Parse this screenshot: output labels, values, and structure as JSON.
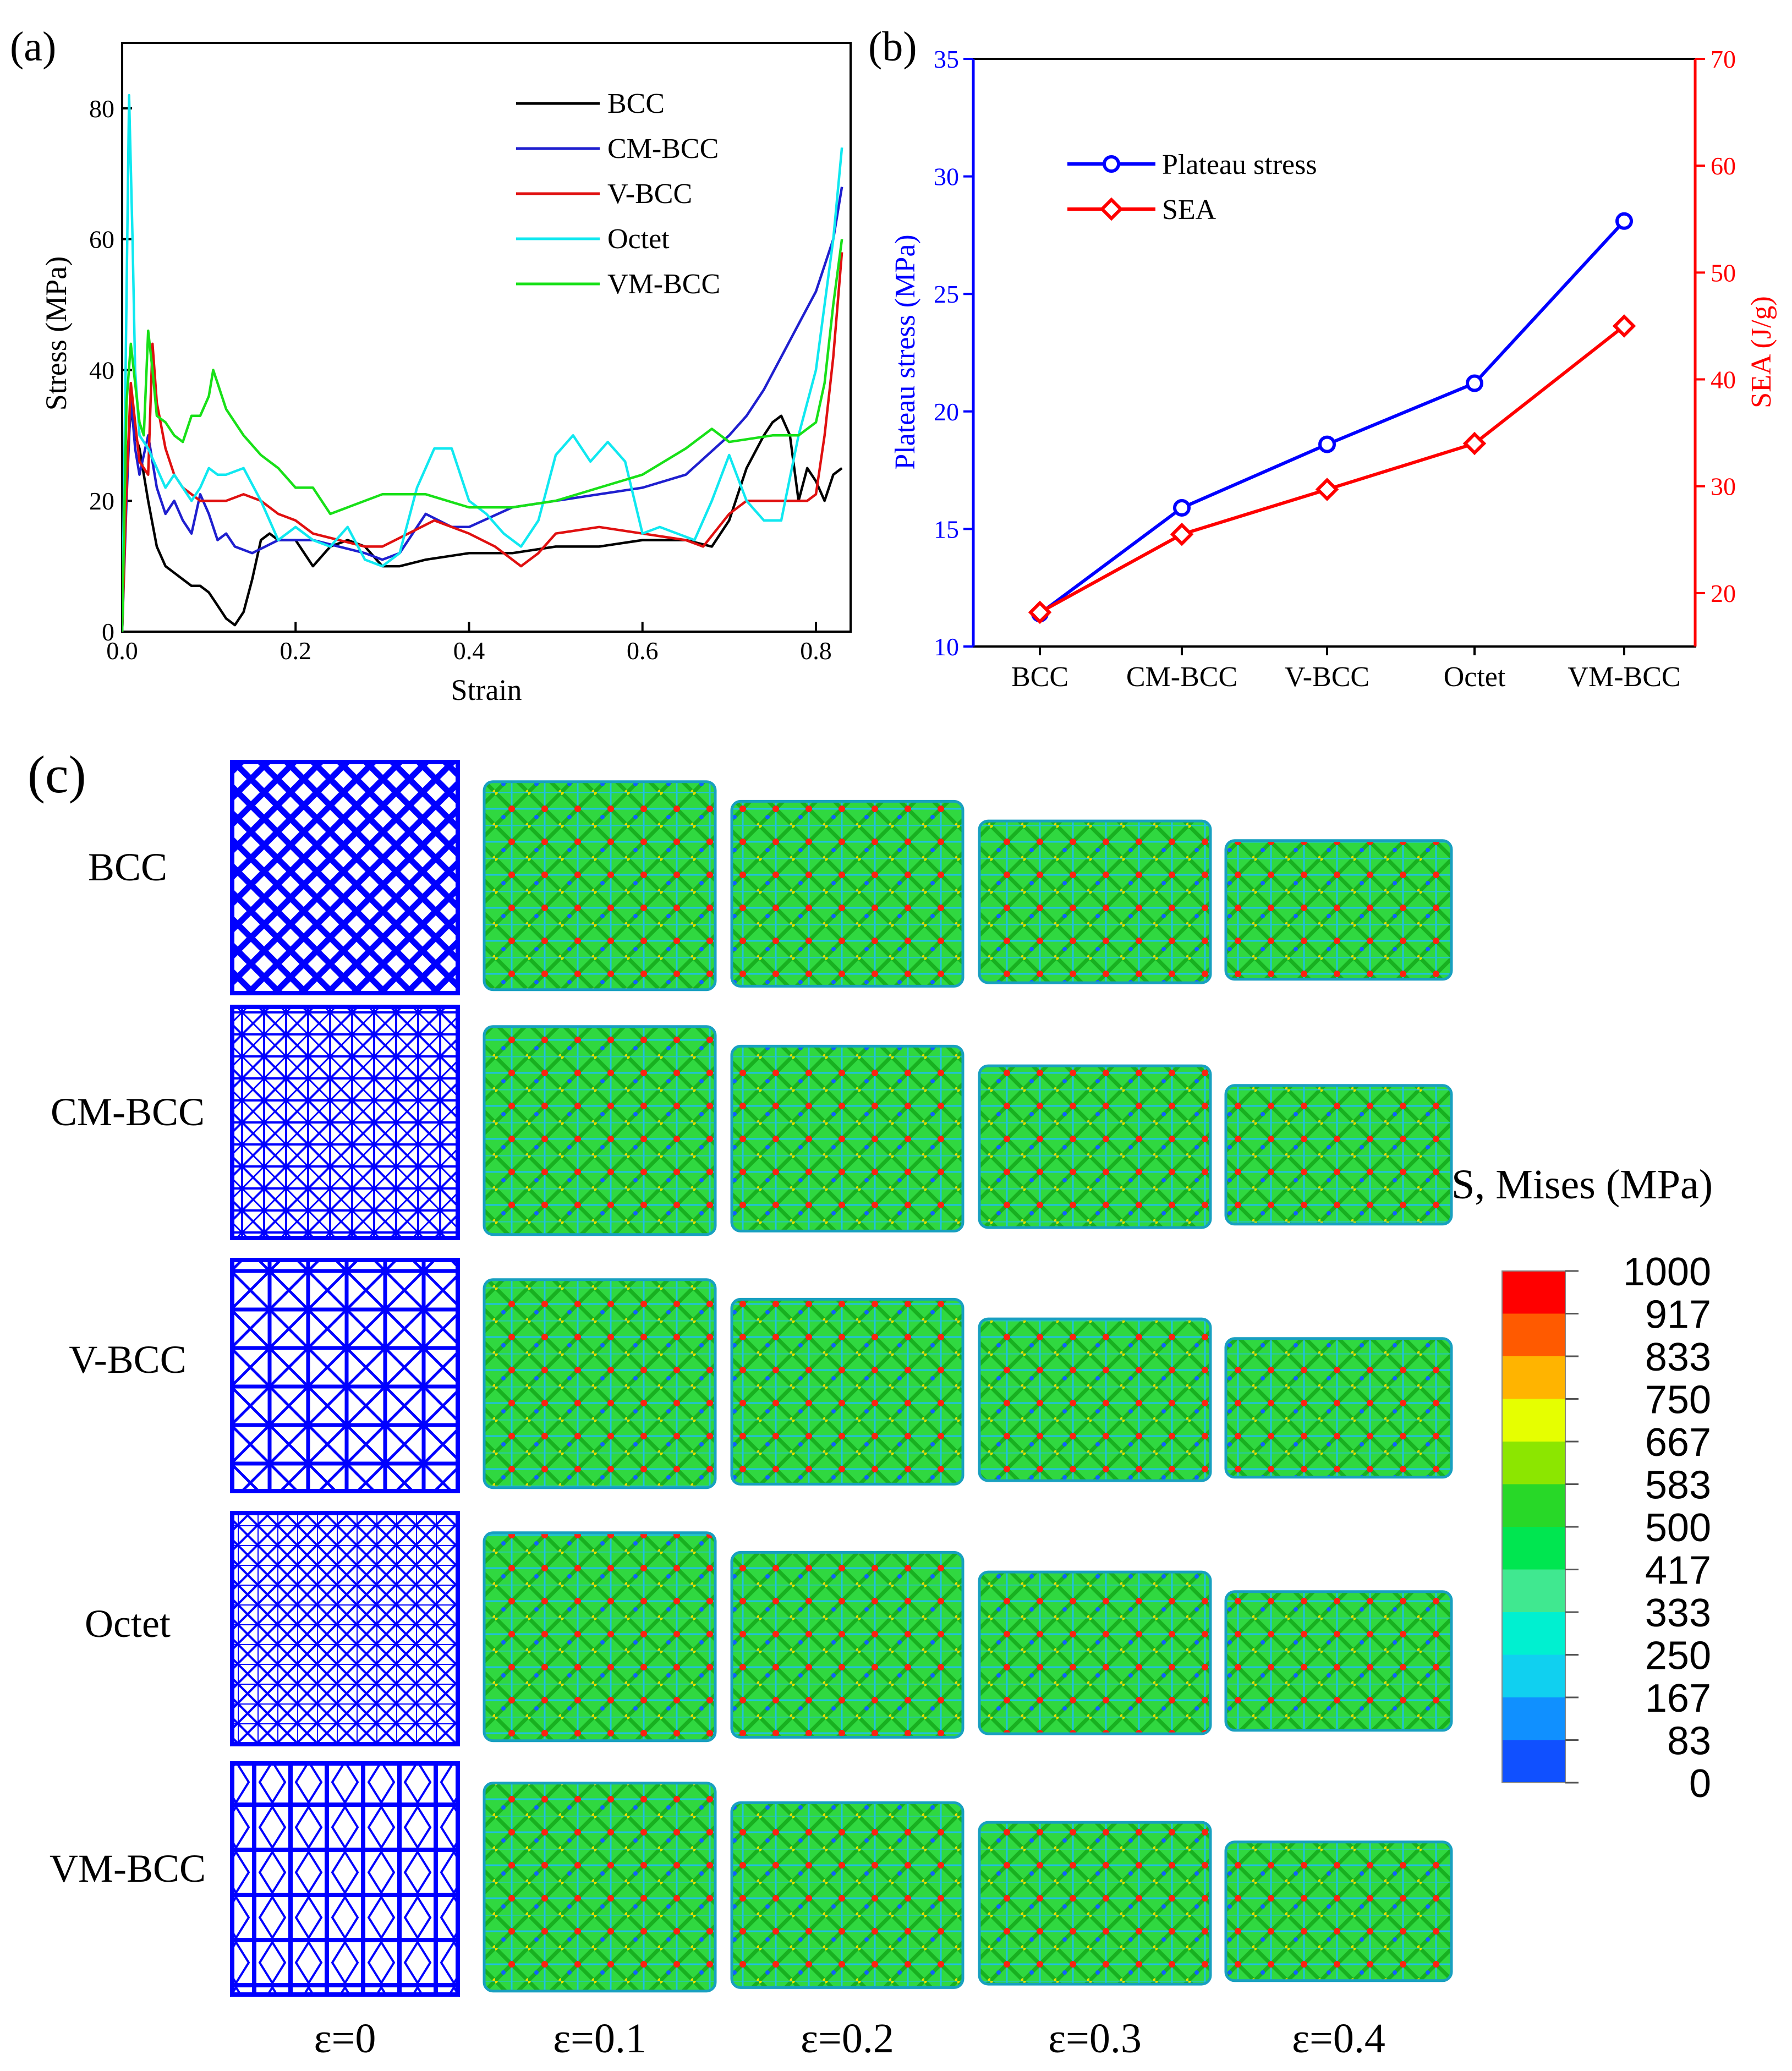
{
  "chart_data": [
    {
      "panel": "(a)",
      "type": "line",
      "xlabel": "Strain",
      "ylabel": "Stress (MPa)",
      "xlim": [
        0.0,
        0.84
      ],
      "ylim": [
        0,
        90
      ],
      "xticks": [
        "0.0",
        "0.2",
        "0.4",
        "0.6",
        "0.8"
      ],
      "xtick_values": [
        0.0,
        0.2,
        0.4,
        0.6,
        0.8
      ],
      "yticks": [
        "0",
        "20",
        "40",
        "60",
        "80"
      ],
      "ytick_values": [
        0,
        20,
        40,
        60,
        80
      ],
      "legend_position": "top-right",
      "series": [
        {
          "name": "BCC",
          "color": "#000000",
          "x": [
            0,
            0.005,
            0.01,
            0.015,
            0.02,
            0.03,
            0.04,
            0.05,
            0.06,
            0.07,
            0.08,
            0.09,
            0.1,
            0.11,
            0.12,
            0.13,
            0.14,
            0.15,
            0.16,
            0.17,
            0.18,
            0.2,
            0.22,
            0.24,
            0.26,
            0.28,
            0.3,
            0.32,
            0.35,
            0.4,
            0.45,
            0.5,
            0.55,
            0.6,
            0.65,
            0.68,
            0.7,
            0.72,
            0.74,
            0.75,
            0.76,
            0.77,
            0.78,
            0.79,
            0.8,
            0.81,
            0.82,
            0.83
          ],
          "y": [
            0,
            25,
            34,
            30,
            28,
            20,
            13,
            10,
            9,
            8,
            7,
            7,
            6,
            4,
            2,
            1,
            3,
            8,
            14,
            15,
            14,
            14,
            10,
            13,
            14,
            13,
            10,
            10,
            11,
            12,
            12,
            13,
            13,
            14,
            14,
            13,
            17,
            25,
            30,
            32,
            33,
            30,
            20,
            25,
            23,
            20,
            24,
            25
          ]
        },
        {
          "name": "CM-BCC",
          "color": "#1f1fcf",
          "x": [
            0,
            0.005,
            0.01,
            0.015,
            0.02,
            0.03,
            0.04,
            0.05,
            0.06,
            0.07,
            0.08,
            0.09,
            0.1,
            0.11,
            0.12,
            0.13,
            0.15,
            0.18,
            0.2,
            0.22,
            0.25,
            0.28,
            0.3,
            0.32,
            0.35,
            0.38,
            0.4,
            0.45,
            0.5,
            0.55,
            0.6,
            0.65,
            0.7,
            0.72,
            0.74,
            0.76,
            0.78,
            0.8,
            0.82,
            0.83
          ],
          "y": [
            0,
            20,
            36,
            28,
            24,
            30,
            22,
            18,
            20,
            17,
            15,
            21,
            18,
            14,
            15,
            13,
            12,
            14,
            14,
            14,
            13,
            12,
            11,
            12,
            18,
            16,
            16,
            19,
            20,
            21,
            22,
            24,
            30,
            33,
            37,
            42,
            47,
            52,
            60,
            68
          ]
        },
        {
          "name": "V-BCC",
          "color": "#e01010",
          "x": [
            0,
            0.005,
            0.01,
            0.015,
            0.02,
            0.03,
            0.035,
            0.04,
            0.05,
            0.06,
            0.07,
            0.08,
            0.09,
            0.1,
            0.12,
            0.14,
            0.16,
            0.18,
            0.2,
            0.22,
            0.25,
            0.28,
            0.3,
            0.33,
            0.36,
            0.4,
            0.43,
            0.45,
            0.46,
            0.48,
            0.5,
            0.55,
            0.6,
            0.65,
            0.67,
            0.7,
            0.72,
            0.75,
            0.77,
            0.79,
            0.8,
            0.81,
            0.82,
            0.83
          ],
          "y": [
            0,
            22,
            38,
            32,
            26,
            24,
            44,
            35,
            28,
            24,
            22,
            21,
            20,
            20,
            20,
            21,
            20,
            18,
            17,
            15,
            14,
            13,
            13,
            15,
            17,
            15,
            13,
            11,
            10,
            12,
            15,
            16,
            15,
            14,
            13,
            18,
            20,
            20,
            20,
            20,
            21,
            30,
            42,
            58
          ]
        },
        {
          "name": "Octet",
          "color": "#10e8f0",
          "x": [
            0,
            0.004,
            0.008,
            0.012,
            0.015,
            0.02,
            0.03,
            0.04,
            0.05,
            0.06,
            0.07,
            0.08,
            0.09,
            0.1,
            0.11,
            0.12,
            0.14,
            0.16,
            0.18,
            0.2,
            0.22,
            0.24,
            0.26,
            0.28,
            0.3,
            0.32,
            0.34,
            0.36,
            0.38,
            0.4,
            0.42,
            0.44,
            0.46,
            0.48,
            0.5,
            0.52,
            0.54,
            0.56,
            0.58,
            0.6,
            0.62,
            0.64,
            0.66,
            0.68,
            0.7,
            0.72,
            0.74,
            0.76,
            0.78,
            0.8,
            0.82,
            0.83
          ],
          "y": [
            0,
            40,
            82,
            60,
            40,
            30,
            28,
            25,
            22,
            24,
            22,
            20,
            22,
            25,
            24,
            24,
            25,
            20,
            14,
            16,
            14,
            13,
            16,
            11,
            10,
            12,
            22,
            28,
            28,
            20,
            18,
            15,
            13,
            17,
            27,
            30,
            26,
            29,
            26,
            15,
            16,
            15,
            14,
            20,
            27,
            20,
            17,
            17,
            30,
            40,
            60,
            74
          ]
        },
        {
          "name": "VM-BCC",
          "color": "#18e018",
          "x": [
            0,
            0.005,
            0.01,
            0.015,
            0.02,
            0.025,
            0.03,
            0.035,
            0.04,
            0.05,
            0.06,
            0.07,
            0.08,
            0.09,
            0.1,
            0.105,
            0.11,
            0.12,
            0.14,
            0.16,
            0.18,
            0.2,
            0.22,
            0.24,
            0.26,
            0.28,
            0.3,
            0.35,
            0.4,
            0.45,
            0.5,
            0.55,
            0.6,
            0.65,
            0.68,
            0.7,
            0.75,
            0.78,
            0.8,
            0.81,
            0.82,
            0.83
          ],
          "y": [
            0,
            35,
            44,
            38,
            32,
            30,
            46,
            40,
            33,
            32,
            30,
            29,
            33,
            33,
            36,
            40,
            38,
            34,
            30,
            27,
            25,
            22,
            22,
            18,
            19,
            20,
            21,
            21,
            19,
            19,
            20,
            22,
            24,
            28,
            31,
            29,
            30,
            30,
            32,
            38,
            50,
            60
          ]
        }
      ]
    },
    {
      "panel": "(b)",
      "type": "line",
      "categories": [
        "BCC",
        "CM-BCC",
        "V-BCC",
        "Octet",
        "VM-BCC"
      ],
      "ylabel": "Plateau stress (MPa)",
      "ylabel_color": "#0000ff",
      "ylim": [
        10,
        35
      ],
      "yticks": [
        "10",
        "15",
        "20",
        "25",
        "30",
        "35"
      ],
      "ytick_values": [
        10,
        15,
        20,
        25,
        30,
        35
      ],
      "y2label": "SEA (J/g)",
      "y2label_color": "#ff0000",
      "y2lim": [
        15,
        70
      ],
      "y2ticks": [
        "20",
        "30",
        "40",
        "50",
        "60",
        "70"
      ],
      "y2tick_values": [
        20,
        30,
        40,
        50,
        60,
        70
      ],
      "legend_position": "top-left",
      "series": [
        {
          "name": "Plateau stress",
          "axis": "left",
          "color": "#0000ff",
          "marker": "circle",
          "values": [
            11.4,
            15.9,
            18.6,
            21.2,
            28.1
          ]
        },
        {
          "name": "SEA",
          "axis": "right",
          "color": "#ff0000",
          "marker": "diamond",
          "values": [
            18.2,
            25.5,
            29.7,
            34.0,
            45.0
          ]
        }
      ]
    }
  ],
  "panel_c": {
    "label": "(c)",
    "rows": [
      "BCC",
      "CM-BCC",
      "V-BCC",
      "Octet",
      "VM-BCC"
    ],
    "strains": [
      "ε=0",
      "ε=0.1",
      "ε=0.2",
      "ε=0.3",
      "ε=0.4"
    ],
    "legend_title": "S, Mises (MPa)",
    "legend_values": [
      "1000",
      "917",
      "833",
      "750",
      "667",
      "583",
      "500",
      "417",
      "333",
      "250",
      "167",
      "83",
      "0"
    ],
    "legend_colors": [
      "#ff0000",
      "#ff5a00",
      "#ffb400",
      "#e6ff00",
      "#8ce600",
      "#28d828",
      "#00e650",
      "#40e890",
      "#00f0d0",
      "#10d0f0",
      "#1090ff",
      "#1050ff",
      "#0000ff"
    ]
  }
}
